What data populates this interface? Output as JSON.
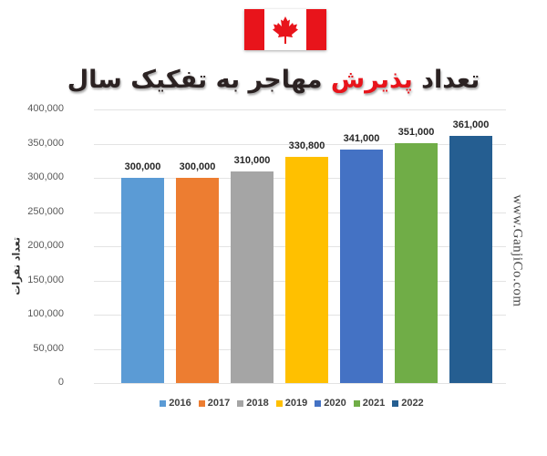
{
  "header": {
    "flag": {
      "name": "canada-flag",
      "red": "#e8141b",
      "white": "#ffffff"
    },
    "title_part1": "تعداد ",
    "title_highlight": "پذیرش",
    "title_part2": " مهاجر به تفکیک سال"
  },
  "watermark": "www.GanjiCo.com",
  "chart_data": {
    "type": "bar",
    "title": "تعداد پذیرش مهاجر به تفکیک سال",
    "xlabel": "",
    "ylabel": "تعداد نفرات",
    "ylim": [
      0,
      400000
    ],
    "yticks": [
      "0",
      "50,000",
      "100,000",
      "150,000",
      "200,000",
      "250,000",
      "300,000",
      "350,000",
      "400,000"
    ],
    "grid": true,
    "legend_position": "bottom",
    "categories": [
      "2016",
      "2017",
      "2018",
      "2019",
      "2020",
      "2021",
      "2022"
    ],
    "values": [
      300000,
      300000,
      310000,
      330800,
      341000,
      351000,
      361000
    ],
    "value_labels": [
      "300,000",
      "300,000",
      "310,000",
      "330,800",
      "341,000",
      "351,000",
      "361,000"
    ],
    "colors": [
      "#5b9bd5",
      "#ed7d31",
      "#a5a5a5",
      "#ffc000",
      "#4472c4",
      "#70ad47",
      "#255e91"
    ]
  }
}
